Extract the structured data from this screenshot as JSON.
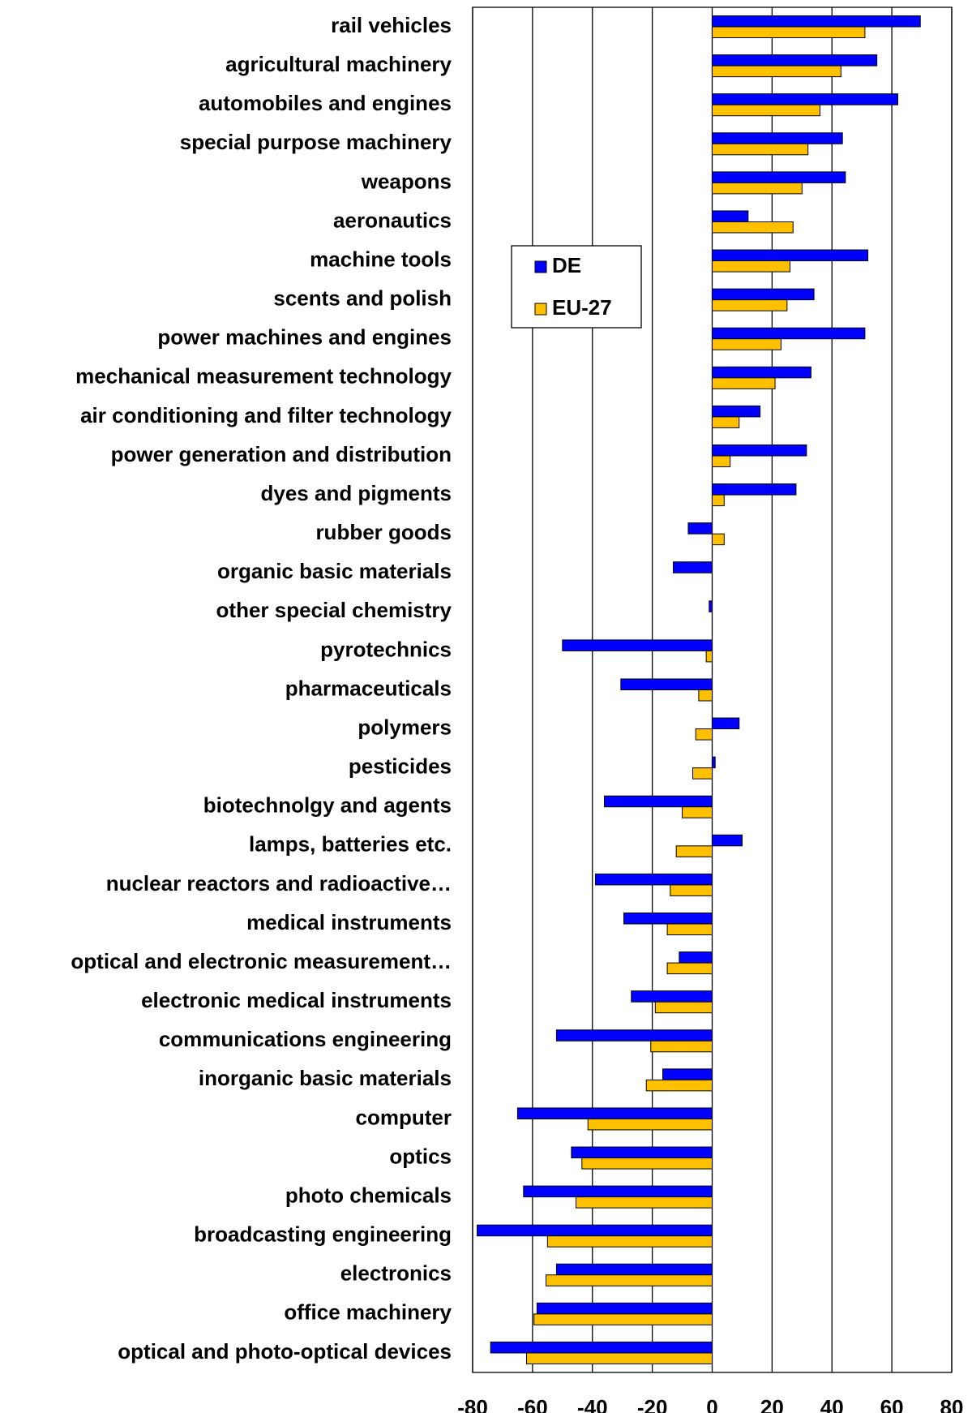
{
  "chart_data": {
    "type": "hbar",
    "categories": [
      "rail vehicles",
      "agricultural machinery",
      "automobiles and engines",
      "special purpose machinery",
      "weapons",
      "aeronautics",
      "machine tools",
      "scents and polish",
      "power machines and engines",
      "mechanical measurement technology",
      "air conditioning and filter technology",
      "power generation and distribution",
      "dyes and pigments",
      "rubber goods",
      "organic basic materials",
      "other special chemistry",
      "pyrotechnics",
      "pharmaceuticals",
      "polymers",
      "pesticides",
      "biotechnolgy and agents",
      "lamps, batteries etc.",
      "nuclear reactors and radioactive…",
      "medical instruments",
      "optical and electronic measurement…",
      "electronic medical instruments",
      "communications engineering",
      "inorganic basic materials",
      "computer",
      "optics",
      "photo chemicals",
      "broadcasting engineering",
      "electronics",
      "office machinery",
      "optical and photo-optical devices"
    ],
    "series": [
      {
        "name": "DE",
        "color": "#0000ff",
        "values": [
          69.5,
          55,
          62,
          43.5,
          44.5,
          12,
          52,
          34,
          51,
          33,
          16,
          31.5,
          28,
          -8,
          -13,
          -1,
          -50,
          -30.5,
          9,
          1,
          -36,
          10,
          -39,
          -29.5,
          -11,
          -27,
          -52,
          -16.5,
          -65,
          -47,
          -63,
          -78.5,
          -52,
          -58.5,
          -74
        ]
      },
      {
        "name": "EU-27",
        "color": "#ffc000",
        "values": [
          51,
          43,
          36,
          32,
          30,
          27,
          26,
          25,
          23,
          21,
          9,
          6,
          4,
          4,
          0,
          0,
          -2,
          -4.5,
          -5.5,
          -6.5,
          -10,
          -12,
          -14,
          -15,
          -15,
          -19,
          -20.5,
          -22,
          -41.5,
          -43.5,
          -45.5,
          -55,
          -55.5,
          -59.5,
          -62
        ]
      }
    ],
    "xlim": [
      -80,
      80
    ],
    "xticks": [
      -80,
      -60,
      -40,
      -20,
      0,
      20,
      40,
      60,
      80
    ],
    "grid": true
  }
}
